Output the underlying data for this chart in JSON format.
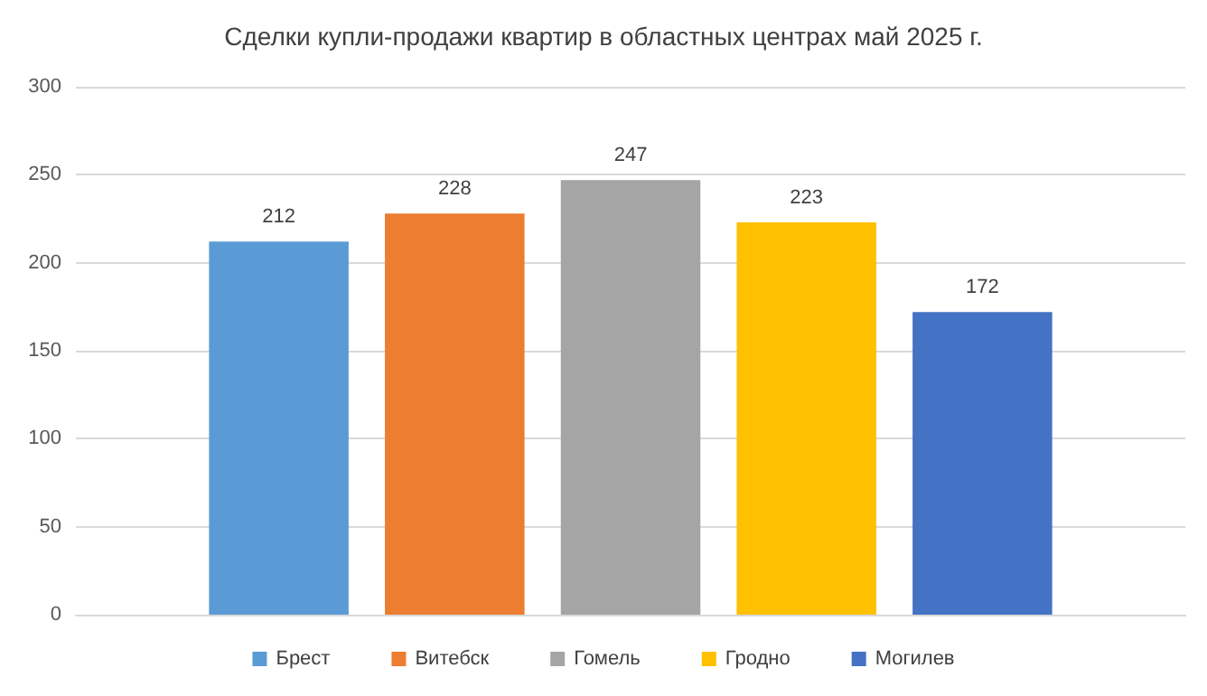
{
  "chart_data": {
    "type": "bar",
    "title": "Сделки купли-продажи квартир в областных центрах май 2025 г.",
    "categories": [
      null
    ],
    "series": [
      {
        "name": "Брест",
        "color": "#5b9bd5",
        "values": [
          212
        ]
      },
      {
        "name": "Витебск",
        "color": "#ed7d31",
        "values": [
          228
        ]
      },
      {
        "name": "Гомель",
        "color": "#a5a5a5",
        "values": [
          247
        ]
      },
      {
        "name": "Гродно",
        "color": "#ffc000",
        "values": [
          223
        ]
      },
      {
        "name": "Могилев",
        "color": "#4472c4",
        "values": [
          172
        ]
      }
    ],
    "ylim": [
      0,
      300
    ],
    "yticks": [
      0,
      50,
      100,
      150,
      200,
      250,
      300
    ],
    "grid": "y",
    "legend": "bottom",
    "data_labels": true
  }
}
